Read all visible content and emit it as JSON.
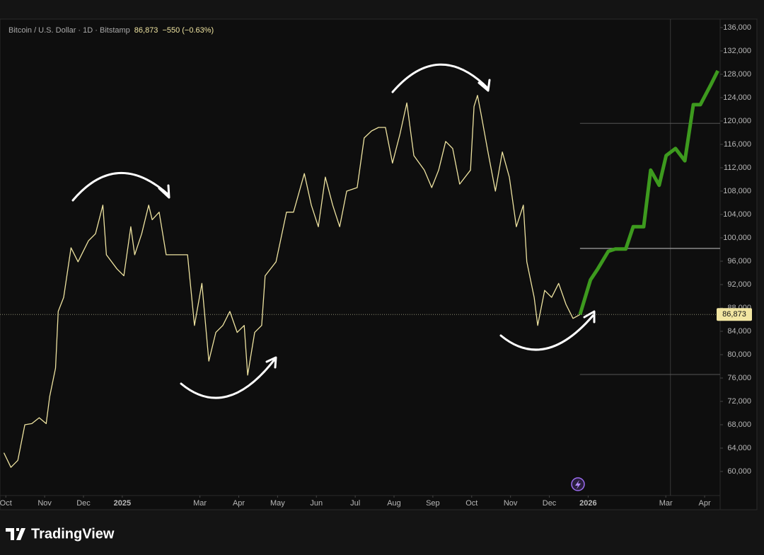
{
  "chart_data": {
    "type": "line",
    "title": "Bitcoin / U.S. Dollar · 1D · Bitstamp",
    "last_price": {
      "value": 86873,
      "label": "86,873"
    },
    "change": "−550 (−0.63%)",
    "series": [
      {
        "color": "#eee3a0",
        "x": [
          -0.05,
          0.13,
          0.31,
          0.49,
          0.67,
          0.86,
          1.04,
          1.13,
          1.28,
          1.35,
          1.49,
          1.68,
          1.86,
          2.13,
          2.31,
          2.5,
          2.59,
          2.86,
          3.04,
          3.22,
          3.32,
          3.5,
          3.68,
          3.77,
          3.95,
          4.13,
          4.41,
          4.68,
          4.86,
          5.05,
          5.23,
          5.41,
          5.59,
          5.77,
          5.96,
          6.14,
          6.23,
          6.41,
          6.59,
          6.68,
          6.96,
          7.23,
          7.41,
          7.69,
          7.87,
          8.05,
          8.23,
          8.42,
          8.6,
          8.78,
          9.05,
          9.23,
          9.42,
          9.6,
          9.78,
          9.96,
          10.15,
          10.33,
          10.51,
          10.78,
          10.97,
          11.15,
          11.33,
          11.51,
          11.69,
          11.97,
          12.06,
          12.15,
          12.24,
          12.42,
          12.61,
          12.79,
          12.97,
          13.15,
          13.33,
          13.42,
          13.61,
          13.7,
          13.88,
          14.06,
          14.24,
          14.43,
          14.61,
          14.79
        ],
        "values": [
          63200,
          60700,
          61900,
          68000,
          68200,
          69200,
          68200,
          72800,
          77700,
          87400,
          89800,
          98300,
          95900,
          99500,
          100700,
          105600,
          97100,
          94700,
          93500,
          101900,
          97100,
          100700,
          105600,
          103100,
          104400,
          97100,
          97100,
          97100,
          85000,
          92200,
          78900,
          83800,
          85000,
          87400,
          83800,
          85000,
          76500,
          83800,
          85000,
          93500,
          95900,
          104400,
          104400,
          111000,
          105600,
          101900,
          110400,
          105600,
          101900,
          108000,
          108600,
          117100,
          118300,
          118900,
          118900,
          112800,
          117700,
          123100,
          114100,
          111600,
          108600,
          111600,
          116500,
          115300,
          109200,
          111600,
          122500,
          124400,
          121300,
          114700,
          108000,
          114700,
          110400,
          101900,
          105600,
          95900,
          89800,
          85000,
          91000,
          89800,
          92200,
          88600,
          86200,
          86873
        ]
      },
      {
        "color": "#3d9a1e",
        "x": [
          14.79,
          15.06,
          15.25,
          15.52,
          15.7,
          15.97,
          16.16,
          16.43,
          16.61,
          16.83,
          17.01,
          17.25,
          17.49,
          17.71,
          17.89,
          18.16,
          18.34
        ],
        "values": [
          86873,
          92800,
          94700,
          97700,
          98100,
          98100,
          101900,
          101900,
          111600,
          109000,
          114100,
          115300,
          113200,
          122800,
          122800,
          126200,
          128600
        ]
      }
    ],
    "hlines": [
      119600,
      98200,
      76600
    ],
    "vline": 17.12,
    "xlim": [
      -0.15,
      18.4
    ],
    "xticks": [
      {
        "value": 0,
        "label": "Oct"
      },
      {
        "value": 1,
        "label": "Nov"
      },
      {
        "value": 2,
        "label": "Dec"
      },
      {
        "value": 3,
        "label": "2025"
      },
      {
        "value": 5,
        "label": "Mar"
      },
      {
        "value": 6,
        "label": "Apr"
      },
      {
        "value": 7,
        "label": "May"
      },
      {
        "value": 8,
        "label": "Jun"
      },
      {
        "value": 9,
        "label": "Jul"
      },
      {
        "value": 10,
        "label": "Aug"
      },
      {
        "value": 11,
        "label": "Sep"
      },
      {
        "value": 12,
        "label": "Oct"
      },
      {
        "value": 13,
        "label": "Nov"
      },
      {
        "value": 14,
        "label": "Dec"
      },
      {
        "value": 15,
        "label": "2026"
      },
      {
        "value": 17,
        "label": "Mar"
      },
      {
        "value": 18,
        "label": "Apr"
      }
    ],
    "ylim": [
      55880,
      137450
    ],
    "yticks": [
      {
        "value": 60000,
        "label": "60,000"
      },
      {
        "value": 64000,
        "label": "64,000"
      },
      {
        "value": 68000,
        "label": "68,000"
      },
      {
        "value": 72000,
        "label": "72,000"
      },
      {
        "value": 76000,
        "label": "76,000"
      },
      {
        "value": 80000,
        "label": "80,000"
      },
      {
        "value": 84000,
        "label": "84,000"
      },
      {
        "value": 88000,
        "label": "88,000"
      },
      {
        "value": 92000,
        "label": "92,000"
      },
      {
        "value": 96000,
        "label": "96,000"
      },
      {
        "value": 100000,
        "label": "100,000"
      },
      {
        "value": 104000,
        "label": "104,000"
      },
      {
        "value": 108000,
        "label": "108,000"
      },
      {
        "value": 112000,
        "label": "112,000"
      },
      {
        "value": 116000,
        "label": "116,000"
      },
      {
        "value": 120000,
        "label": "120,000"
      },
      {
        "value": 124000,
        "label": "124,000"
      },
      {
        "value": 128000,
        "label": "128,000"
      },
      {
        "value": 132000,
        "label": "132,000"
      },
      {
        "value": 136000,
        "label": "136,000"
      }
    ],
    "grid": false
  },
  "brand": "TradingView"
}
